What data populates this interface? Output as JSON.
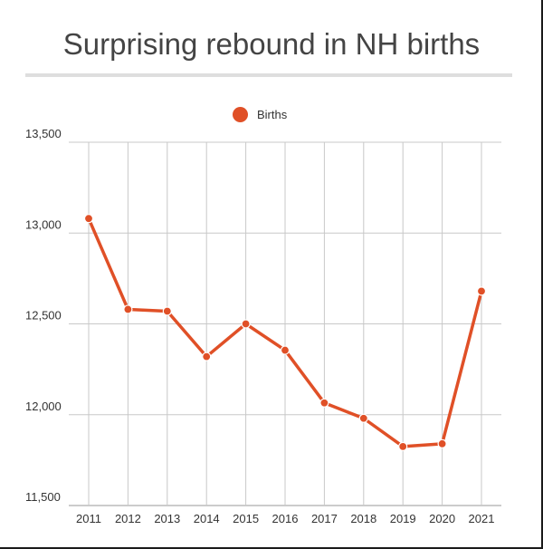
{
  "chart_data": {
    "type": "line",
    "title": "Surprising rebound in NH births",
    "xlabel": "",
    "ylabel": "",
    "categories": [
      "2011",
      "2012",
      "2013",
      "2014",
      "2015",
      "2016",
      "2017",
      "2018",
      "2019",
      "2020",
      "2021"
    ],
    "series": [
      {
        "name": "Births",
        "color": "#e05027",
        "values": [
          13080,
          12580,
          12570,
          12320,
          12500,
          12355,
          12065,
          11980,
          11825,
          11840,
          12680
        ]
      }
    ],
    "ylim": [
      11500,
      13500
    ],
    "yticks": [
      {
        "value": 11500,
        "label": "11,500"
      },
      {
        "value": 12000,
        "label": "12,000"
      },
      {
        "value": 12500,
        "label": "12,500"
      },
      {
        "value": 13000,
        "label": "13,000"
      },
      {
        "value": 13500,
        "label": "13,500"
      }
    ],
    "grid": true,
    "legend_position": "top-center"
  }
}
